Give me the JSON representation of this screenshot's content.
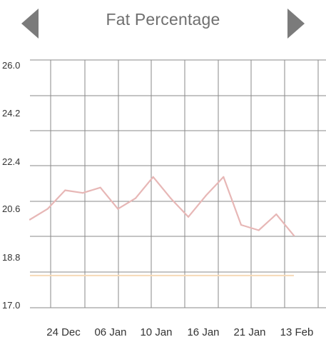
{
  "header": {
    "title": "Fat Percentage",
    "prev_icon": "triangle-left-icon",
    "next_icon": "triangle-right-icon",
    "arrow_color": "#7b7b7b"
  },
  "colors": {
    "grid": "#8a8a8a",
    "line": "#e7b7b6",
    "target": "#f6d9b6",
    "tick_text": "#333333"
  },
  "chart_data": {
    "type": "line",
    "title": "Fat Percentage",
    "xlabel": "",
    "ylabel": "",
    "ylim": [
      17.0,
      26.0
    ],
    "y_ticks": [
      "26.0",
      "24.2",
      "22.4",
      "20.6",
      "18.8",
      "17.0"
    ],
    "x_tick_labels": [
      "24 Dec",
      "06 Jan",
      "10 Jan",
      "16 Jan",
      "21 Jan",
      "13 Feb"
    ],
    "grid": true,
    "series": [
      {
        "values": [
          20.2,
          20.6,
          21.3,
          21.2,
          21.4,
          20.6,
          21.0,
          21.8,
          21.0,
          20.3,
          21.1,
          21.8,
          20.0,
          19.8,
          20.4,
          19.6
        ]
      }
    ],
    "target": {
      "value": 18.1
    }
  }
}
